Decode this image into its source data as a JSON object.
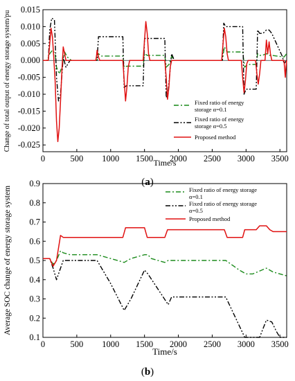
{
  "chart_data": [
    {
      "type": "line",
      "panel_label": "a",
      "xlabel": "Time/s",
      "ylabel": "Change of total output of energy storage system/pu",
      "xlim": [
        0,
        3600
      ],
      "ylim": [
        -0.027,
        0.015
      ],
      "xticks": [
        0,
        500,
        1000,
        1500,
        2000,
        2500,
        3000,
        3500
      ],
      "yticks": [
        0.015,
        0.01,
        0.005,
        0.0,
        -0.005,
        -0.01,
        -0.015,
        -0.02,
        -0.025
      ],
      "ytick_labels": [
        "0.015",
        "0.010",
        "0.005",
        "0.000",
        "-0.005",
        "-0.010",
        "-0.015",
        "-0.020",
        "-0.025"
      ],
      "legend_position": "bottom-right",
      "series": [
        {
          "name": "Fixed ratio of energy storage α=0.1",
          "color": "#1a8a1a",
          "style": "dash-dot",
          "x": [
            0,
            60,
            100,
            140,
            180,
            200,
            240,
            280,
            320,
            360,
            420,
            800,
            820,
            860,
            1180,
            1200,
            1240,
            1280,
            1480,
            1500,
            1540,
            1580,
            1800,
            1820,
            1860,
            1900,
            1940,
            2650,
            2680,
            2720,
            2760,
            2950,
            2980,
            3020,
            3150,
            3170,
            3200,
            3240,
            3300,
            3340,
            3380,
            3560,
            3600
          ],
          "y": [
            0,
            0,
            0.002,
            0.003,
            0.002,
            -0.002,
            -0.004,
            -0.002,
            0.0025,
            0.001,
            0,
            0,
            0.002,
            0.0013,
            0.0013,
            -0.002,
            -0.0017,
            -0.0017,
            -0.0017,
            0.002,
            0.0015,
            0.0015,
            0.0015,
            -0.002,
            -0.0012,
            0.0012,
            0,
            0,
            0.004,
            0.0025,
            0.0025,
            0.0025,
            -0.002,
            -0.0012,
            -0.0012,
            0.002,
            0.0015,
            0.0015,
            0.002,
            0.0015,
            0.0015,
            0.001,
            0.002
          ]
        },
        {
          "name": "Fixed ratio of energy storage α=0.5",
          "color": "#000000",
          "style": "dash-dot-dot",
          "x": [
            0,
            80,
            100,
            130,
            170,
            200,
            230,
            260,
            300,
            340,
            400,
            800,
            820,
            850,
            1180,
            1200,
            1230,
            1480,
            1500,
            1530,
            1800,
            1820,
            1850,
            1900,
            1940,
            2650,
            2670,
            2700,
            2950,
            2970,
            3000,
            3150,
            3170,
            3200,
            3250,
            3300,
            3340,
            3380,
            3540,
            3560,
            3600
          ],
          "y": [
            0,
            0,
            0.009,
            0.0125,
            0.012,
            -0.005,
            -0.012,
            -0.01,
            0.001,
            -0.002,
            0,
            0,
            0.007,
            0.007,
            0.007,
            -0.008,
            -0.0075,
            -0.0075,
            0.0065,
            0.0065,
            0.0065,
            -0.011,
            -0.009,
            0.002,
            0,
            0,
            0.011,
            0.01,
            0.01,
            -0.01,
            -0.0085,
            -0.0085,
            0.009,
            0.008,
            0.008,
            0.009,
            0.009,
            0.008,
            0.001,
            -0.001,
            0
          ]
        },
        {
          "name": "Proposed method",
          "color": "#e01010",
          "style": "solid",
          "x": [
            0,
            80,
            100,
            120,
            140,
            160,
            180,
            200,
            220,
            240,
            260,
            280,
            300,
            320,
            340,
            360,
            380,
            400,
            780,
            790,
            800,
            820,
            840,
            860,
            1180,
            1200,
            1220,
            1240,
            1260,
            1280,
            1480,
            1500,
            1520,
            1540,
            1560,
            1580,
            1800,
            1820,
            1840,
            1860,
            1880,
            1900,
            2640,
            2660,
            2680,
            2700,
            2720,
            2740,
            2930,
            2950,
            2970,
            2990,
            3010,
            3030,
            3140,
            3160,
            3180,
            3200,
            3220,
            3240,
            3280,
            3300,
            3320,
            3340,
            3360,
            3380,
            3560,
            3580,
            3590,
            3600
          ],
          "y": [
            0,
            0,
            0.005,
            0.0095,
            0.007,
            0.001,
            -0.006,
            -0.018,
            -0.024,
            -0.02,
            -0.012,
            -0.003,
            0.004,
            0.002,
            0,
            0,
            0,
            0,
            0,
            0.001,
            0.003,
            0.001,
            0,
            0,
            0,
            -0.006,
            -0.012,
            -0.008,
            -0.002,
            0,
            0,
            0.006,
            0.0115,
            0.008,
            0.002,
            0,
            0,
            -0.005,
            -0.0115,
            -0.008,
            -0.002,
            0,
            0,
            0.005,
            0.0095,
            0.007,
            0.002,
            0,
            0,
            -0.005,
            -0.0095,
            -0.006,
            -0.001,
            0,
            0,
            -0.004,
            -0.007,
            -0.004,
            0,
            0,
            0,
            0.006,
            0.002,
            0.0055,
            0.002,
            0,
            0,
            -0.005,
            -0.002,
            0
          ]
        }
      ]
    },
    {
      "type": "line",
      "panel_label": "b",
      "xlabel": "Time/s",
      "ylabel": "Average SOC change of energy storage system",
      "xlim": [
        0,
        3600
      ],
      "ylim": [
        0.1,
        0.9
      ],
      "xticks": [
        0,
        500,
        1000,
        1500,
        2000,
        2500,
        3000,
        3500
      ],
      "yticks": [
        0.1,
        0.2,
        0.3,
        0.4,
        0.5,
        0.6,
        0.7,
        0.8,
        0.9
      ],
      "ytick_labels": [
        "0.1",
        "0.2",
        "0.3",
        "0.4",
        "0.5",
        "0.6",
        "0.7",
        "0.8",
        "0.9"
      ],
      "legend_position": "top-right",
      "series": [
        {
          "name": "Fixed ratio of energy storage α=0.1",
          "color": "#1a8a1a",
          "style": "dash-dot",
          "x": [
            0,
            100,
            150,
            200,
            260,
            300,
            400,
            800,
            1000,
            1200,
            1300,
            1500,
            1550,
            1600,
            1800,
            1850,
            1950,
            2700,
            2900,
            3000,
            3100,
            3300,
            3400,
            3500,
            3600
          ],
          "y": [
            0.51,
            0.51,
            0.48,
            0.5,
            0.55,
            0.54,
            0.53,
            0.53,
            0.51,
            0.49,
            0.51,
            0.53,
            0.53,
            0.51,
            0.49,
            0.5,
            0.5,
            0.5,
            0.45,
            0.43,
            0.43,
            0.46,
            0.44,
            0.43,
            0.42
          ]
        },
        {
          "name": "Fixed ratio of energy storage α=0.5",
          "color": "#000000",
          "style": "dash-dot-dot",
          "x": [
            0,
            100,
            150,
            200,
            300,
            400,
            800,
            1000,
            1200,
            1300,
            1500,
            1550,
            1850,
            1900,
            2000,
            2700,
            2900,
            2980,
            3050,
            3200,
            3300,
            3380,
            3450,
            3500,
            3600
          ],
          "y": [
            0.51,
            0.51,
            0.46,
            0.4,
            0.5,
            0.5,
            0.5,
            0.38,
            0.24,
            0.3,
            0.45,
            0.43,
            0.27,
            0.31,
            0.31,
            0.31,
            0.16,
            0.1,
            0.1,
            0.1,
            0.19,
            0.18,
            0.13,
            0.1,
            0.1
          ]
        },
        {
          "name": "Proposed method",
          "color": "#e01010",
          "style": "solid",
          "x": [
            0,
            100,
            150,
            200,
            260,
            300,
            800,
            1180,
            1220,
            1500,
            1540,
            1800,
            1840,
            2680,
            2720,
            2950,
            2980,
            3150,
            3200,
            3300,
            3350,
            3400,
            3560,
            3600
          ],
          "y": [
            0.51,
            0.51,
            0.47,
            0.5,
            0.63,
            0.62,
            0.62,
            0.62,
            0.67,
            0.67,
            0.62,
            0.62,
            0.66,
            0.66,
            0.62,
            0.62,
            0.66,
            0.66,
            0.68,
            0.68,
            0.66,
            0.65,
            0.65,
            0.65
          ]
        }
      ]
    }
  ],
  "legend_a": [
    {
      "line1": "Fixed ratio of energy",
      "line2": "storage α=0.1",
      "color": "#1a8a1a",
      "style": "dash-dot"
    },
    {
      "line1": "Fixed ratio of energy",
      "line2": "storage α=0.5",
      "color": "#000000",
      "style": "dash-dot-dot"
    },
    {
      "line1": "Proposed method",
      "line2": "",
      "color": "#e01010",
      "style": "solid"
    }
  ],
  "legend_b": [
    {
      "line1": "Fixed ratio of energy storage",
      "line2": "α=0.1",
      "color": "#1a8a1a",
      "style": "dash-dot"
    },
    {
      "line1": "Fixed ratio of energy storage",
      "line2": "α=0.5",
      "color": "#000000",
      "style": "dash-dot-dot"
    },
    {
      "line1": "Proposed method",
      "line2": "",
      "color": "#e01010",
      "style": "solid"
    }
  ],
  "captions": {
    "a": {
      "open": "(",
      "letter": "a",
      "close": ")"
    },
    "b": {
      "open": "(",
      "letter": "b",
      "close": ")"
    }
  }
}
